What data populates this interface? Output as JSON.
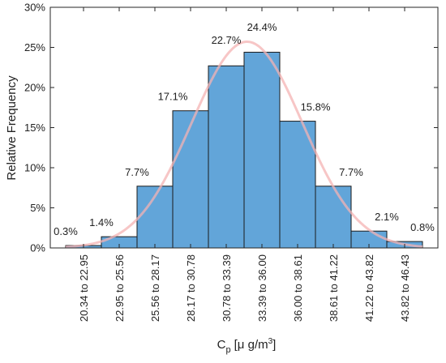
{
  "chart_data": {
    "type": "bar",
    "categories": [
      "20.34 to 22.95",
      "22.95 to 25.56",
      "25.56 to 28.17",
      "28.17 to 30.78",
      "30.78 to 33.39",
      "33.39 to 36.00",
      "36.00 to 38.61",
      "38.61 to 41.22",
      "41.22 to 43.82",
      "43.82 to 46.43"
    ],
    "values": [
      0.3,
      1.4,
      7.7,
      17.1,
      22.7,
      24.4,
      15.8,
      7.7,
      2.1,
      0.8
    ],
    "data_labels": [
      "0.3%",
      "1.4%",
      "7.7%",
      "17.1%",
      "22.7%",
      "24.4%",
      "15.8%",
      "7.7%",
      "2.1%",
      "0.8%"
    ],
    "title": "",
    "xlabel_main": "C",
    "xlabel_sub": "p",
    "xlabel_units": "[μ g/m",
    "xlabel_sup": "3",
    "xlabel_close": "]",
    "ylabel": "Relative Frequency",
    "ylim": [
      0,
      30
    ],
    "yticks": [
      0,
      5,
      10,
      15,
      20,
      25,
      30
    ],
    "ytick_labels": [
      "0%",
      "5%",
      "10%",
      "15%",
      "20%",
      "25%",
      "30%"
    ],
    "grid": false,
    "fit_curve": {
      "type": "normal",
      "mean": 33.6,
      "sd": 4.05,
      "bin_width": 2.61
    },
    "colors": {
      "bar_fill": "#62A5D9",
      "bar_stroke": "#1b1b1b",
      "curve": "#F4B3B3",
      "axis": "#262626"
    }
  }
}
